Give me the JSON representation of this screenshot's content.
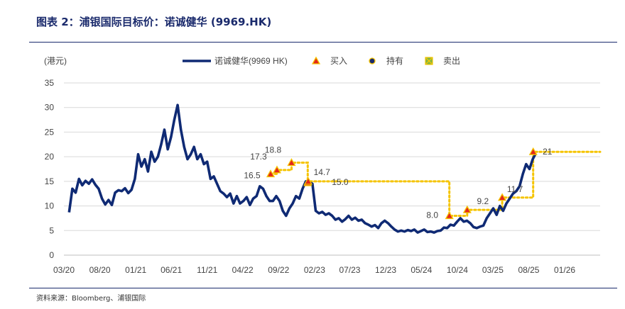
{
  "header": {
    "title": "图表 2：浦银国际目标价：诺诚健华 (9969.HK)"
  },
  "footer": {
    "source": "资料来源：Bloomberg、浦银国际"
  },
  "colors": {
    "price_line": "#0f2a74",
    "target_dotted": "#f5c400",
    "buy_fill": "#e3261b",
    "hold_fill": "#1a2a6c",
    "sell_fill": "#7ab648",
    "rule": "#1a2a6c"
  },
  "chart_data": {
    "type": "line",
    "ylabel": "(港元)",
    "ylim": [
      0,
      35
    ],
    "yticks": [
      0,
      5,
      10,
      15,
      20,
      25,
      30,
      35
    ],
    "x_ticks": [
      "03/20",
      "08/20",
      "01/21",
      "06/21",
      "11/21",
      "04/22",
      "09/22",
      "02/23",
      "07/23",
      "12/23",
      "05/24",
      "10/24",
      "03/25",
      "08/25",
      "01/26"
    ],
    "grid": "horizontal",
    "legend": {
      "position": "top",
      "items": [
        {
          "label": "诺诚健华(9969 HK)",
          "marker": "line"
        },
        {
          "label": "买入",
          "marker": "triangle"
        },
        {
          "label": "持有",
          "marker": "circle"
        },
        {
          "label": "卖出",
          "marker": "square-x"
        }
      ]
    },
    "series": [
      {
        "name": "诺诚健华(9969 HK)",
        "points": [
          [
            "2020-03-23",
            8.7
          ],
          [
            "2020-04-06",
            13.5
          ],
          [
            "2020-04-20",
            12.7
          ],
          [
            "2020-05-04",
            15.5
          ],
          [
            "2020-05-18",
            14.2
          ],
          [
            "2020-06-01",
            15.1
          ],
          [
            "2020-06-15",
            14.5
          ],
          [
            "2020-06-29",
            15.4
          ],
          [
            "2020-07-13",
            14.3
          ],
          [
            "2020-07-27",
            13.5
          ],
          [
            "2020-08-10",
            11.5
          ],
          [
            "2020-08-24",
            10.3
          ],
          [
            "2020-09-07",
            11.2
          ],
          [
            "2020-09-21",
            10.2
          ],
          [
            "2020-10-05",
            12.7
          ],
          [
            "2020-10-19",
            13.2
          ],
          [
            "2020-11-02",
            13.0
          ],
          [
            "2020-11-16",
            13.6
          ],
          [
            "2020-11-30",
            12.6
          ],
          [
            "2020-12-14",
            13.3
          ],
          [
            "2020-12-28",
            15.5
          ],
          [
            "2021-01-11",
            20.5
          ],
          [
            "2021-01-25",
            18.0
          ],
          [
            "2021-02-08",
            19.5
          ],
          [
            "2021-02-22",
            17.0
          ],
          [
            "2021-03-08",
            21.0
          ],
          [
            "2021-03-22",
            19.0
          ],
          [
            "2021-04-05",
            20.0
          ],
          [
            "2021-04-19",
            22.5
          ],
          [
            "2021-05-03",
            25.5
          ],
          [
            "2021-05-17",
            21.5
          ],
          [
            "2021-05-31",
            24.0
          ],
          [
            "2021-06-14",
            27.5
          ],
          [
            "2021-06-28",
            30.5
          ],
          [
            "2021-07-12",
            25.5
          ],
          [
            "2021-07-26",
            22.0
          ],
          [
            "2021-08-09",
            19.5
          ],
          [
            "2021-08-23",
            20.5
          ],
          [
            "2021-09-06",
            22.0
          ],
          [
            "2021-09-20",
            19.5
          ],
          [
            "2021-10-04",
            20.5
          ],
          [
            "2021-10-18",
            18.5
          ],
          [
            "2021-11-01",
            19.0
          ],
          [
            "2021-11-15",
            15.5
          ],
          [
            "2021-11-29",
            16.0
          ],
          [
            "2021-12-13",
            14.5
          ],
          [
            "2021-12-27",
            13.0
          ],
          [
            "2022-01-10",
            12.5
          ],
          [
            "2022-01-24",
            11.8
          ],
          [
            "2022-02-07",
            12.5
          ],
          [
            "2022-02-21",
            10.5
          ],
          [
            "2022-03-07",
            12.0
          ],
          [
            "2022-03-21",
            10.5
          ],
          [
            "2022-04-04",
            11.0
          ],
          [
            "2022-04-18",
            11.8
          ],
          [
            "2022-05-02",
            10.2
          ],
          [
            "2022-05-16",
            11.5
          ],
          [
            "2022-05-30",
            12.0
          ],
          [
            "2022-06-13",
            14.0
          ],
          [
            "2022-06-27",
            13.5
          ],
          [
            "2022-07-11",
            12.0
          ],
          [
            "2022-07-25",
            11.0
          ],
          [
            "2022-08-08",
            11.0
          ],
          [
            "2022-08-22",
            12.0
          ],
          [
            "2022-09-05",
            11.0
          ],
          [
            "2022-09-19",
            9.0
          ],
          [
            "2022-10-03",
            8.0
          ],
          [
            "2022-10-17",
            9.5
          ],
          [
            "2022-10-31",
            10.5
          ],
          [
            "2022-11-14",
            12.0
          ],
          [
            "2022-11-28",
            11.5
          ],
          [
            "2022-12-12",
            13.5
          ],
          [
            "2022-12-26",
            15.0
          ],
          [
            "2023-01-09",
            14.8
          ],
          [
            "2023-01-23",
            14.5
          ],
          [
            "2023-02-06",
            9.0
          ],
          [
            "2023-02-20",
            8.5
          ],
          [
            "2023-03-06",
            8.8
          ],
          [
            "2023-03-20",
            8.2
          ],
          [
            "2023-04-03",
            8.5
          ],
          [
            "2023-04-17",
            8.0
          ],
          [
            "2023-05-01",
            7.2
          ],
          [
            "2023-05-15",
            7.5
          ],
          [
            "2023-05-29",
            6.8
          ],
          [
            "2023-06-12",
            7.3
          ],
          [
            "2023-06-26",
            8.0
          ],
          [
            "2023-07-10",
            7.2
          ],
          [
            "2023-07-24",
            7.6
          ],
          [
            "2023-08-07",
            7.0
          ],
          [
            "2023-08-21",
            7.2
          ],
          [
            "2023-09-04",
            6.5
          ],
          [
            "2023-09-18",
            6.2
          ],
          [
            "2023-10-02",
            5.8
          ],
          [
            "2023-10-16",
            6.1
          ],
          [
            "2023-10-30",
            5.5
          ],
          [
            "2023-11-13",
            6.5
          ],
          [
            "2023-11-27",
            7.0
          ],
          [
            "2023-12-11",
            6.5
          ],
          [
            "2023-12-25",
            5.8
          ],
          [
            "2024-01-08",
            5.2
          ],
          [
            "2024-01-22",
            4.8
          ],
          [
            "2024-02-05",
            5.0
          ],
          [
            "2024-02-19",
            4.8
          ],
          [
            "2024-03-04",
            5.1
          ],
          [
            "2024-03-18",
            4.9
          ],
          [
            "2024-04-01",
            5.2
          ],
          [
            "2024-04-15",
            4.6
          ],
          [
            "2024-04-29",
            4.9
          ],
          [
            "2024-05-13",
            5.2
          ],
          [
            "2024-05-27",
            4.7
          ],
          [
            "2024-06-10",
            4.8
          ],
          [
            "2024-06-24",
            4.6
          ],
          [
            "2024-07-08",
            4.9
          ],
          [
            "2024-07-22",
            5.0
          ],
          [
            "2024-08-05",
            5.6
          ],
          [
            "2024-08-19",
            5.5
          ],
          [
            "2024-09-02",
            6.2
          ],
          [
            "2024-09-16",
            6.0
          ],
          [
            "2024-09-30",
            6.8
          ],
          [
            "2024-10-14",
            7.5
          ],
          [
            "2024-10-28",
            6.8
          ],
          [
            "2024-11-11",
            7.0
          ],
          [
            "2024-11-25",
            6.5
          ],
          [
            "2024-12-09",
            5.7
          ],
          [
            "2024-12-23",
            5.5
          ],
          [
            "2025-01-06",
            5.8
          ],
          [
            "2025-01-20",
            6.0
          ],
          [
            "2025-02-03",
            7.5
          ],
          [
            "2025-02-17",
            8.5
          ],
          [
            "2025-03-03",
            9.5
          ],
          [
            "2025-03-17",
            8.2
          ],
          [
            "2025-03-31",
            10.0
          ],
          [
            "2025-04-14",
            9.0
          ],
          [
            "2025-04-28",
            10.5
          ],
          [
            "2025-05-12",
            11.5
          ],
          [
            "2025-05-26",
            12.5
          ],
          [
            "2025-06-09",
            13.0
          ],
          [
            "2025-06-23",
            14.0
          ],
          [
            "2025-07-07",
            16.5
          ],
          [
            "2025-07-21",
            18.5
          ],
          [
            "2025-08-04",
            17.5
          ],
          [
            "2025-08-18",
            19.5
          ],
          [
            "2025-08-29",
            20.5
          ]
        ]
      }
    ],
    "target_prices": [
      {
        "date": "2022-07-29",
        "value": 16.5,
        "rating": "买入",
        "label": "16.5"
      },
      {
        "date": "2022-08-25",
        "value": 17.3,
        "rating": "买入",
        "label": "17.3"
      },
      {
        "date": "2022-10-26",
        "value": 18.8,
        "rating": "买入",
        "label": "18.8"
      },
      {
        "date": "2023-01-03",
        "value": 14.7,
        "rating": "买入",
        "label": "14.7"
      },
      {
        "date": "2023-01-05",
        "value": 15.0,
        "rating": "买入",
        "label": "15.0"
      },
      {
        "date": "2024-08-28",
        "value": 8.0,
        "rating": "买入",
        "label": "8.0"
      },
      {
        "date": "2024-11-12",
        "value": 9.2,
        "rating": "买入",
        "label": "9.2"
      },
      {
        "date": "2025-04-10",
        "value": 11.7,
        "rating": "买入",
        "label": "11.7"
      },
      {
        "date": "2025-08-20",
        "value": 21.0,
        "rating": "买入",
        "label": "21"
      }
    ]
  }
}
